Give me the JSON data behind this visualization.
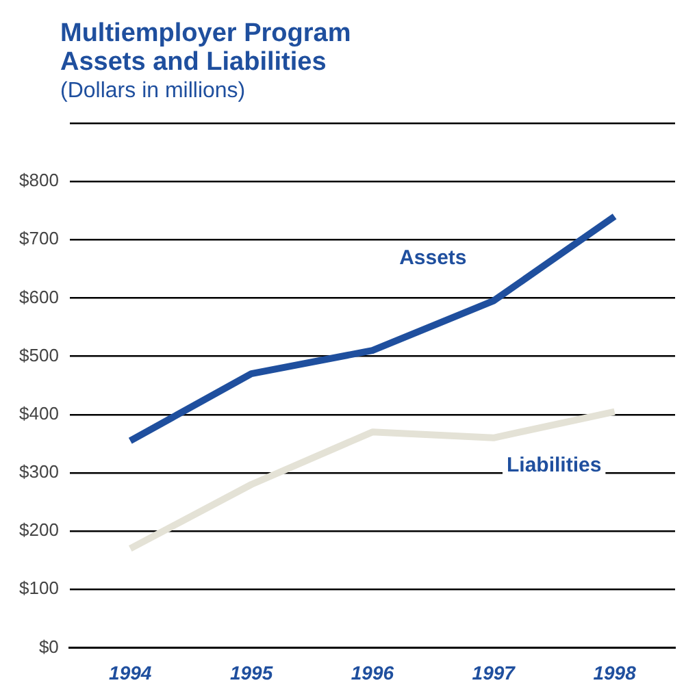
{
  "chart_data": {
    "type": "line",
    "title": "Multiemployer Program\nAssets and Liabilities",
    "subtitle": "(Dollars in millions)",
    "categories": [
      "1994",
      "1995",
      "1996",
      "1997",
      "1998"
    ],
    "series": [
      {
        "name": "Assets",
        "color": "#1f4f9e",
        "values": [
          355,
          470,
          510,
          595,
          740
        ]
      },
      {
        "name": "Liabilities",
        "color": "#e4e2d6",
        "values": [
          170,
          280,
          370,
          360,
          405
        ]
      }
    ],
    "ylim": [
      0,
      900
    ],
    "yticks": [
      {
        "value": 0,
        "label": "$0"
      },
      {
        "value": 100,
        "label": "$100"
      },
      {
        "value": 200,
        "label": "$200"
      },
      {
        "value": 300,
        "label": "$300"
      },
      {
        "value": 400,
        "label": "$400"
      },
      {
        "value": 500,
        "label": "$500"
      },
      {
        "value": 600,
        "label": "$600"
      },
      {
        "value": 700,
        "label": "$700"
      },
      {
        "value": 800,
        "label": "$800"
      },
      {
        "value": 900,
        "label": null
      }
    ],
    "grid": "y",
    "legend": false,
    "marker": "none",
    "line_style": "solid"
  }
}
